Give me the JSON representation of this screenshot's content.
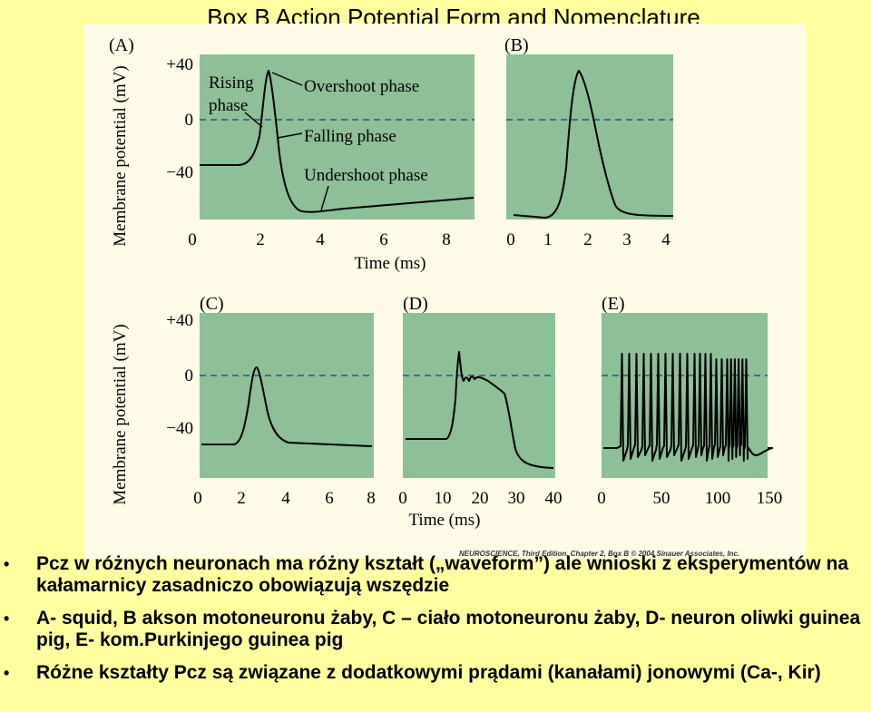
{
  "slide": {
    "title": "Box B  Action Potential Form and Nomenclature",
    "credit": "NEUROSCIENCE, Third Edition, Chapter 2, Box B  © 2004 Sinauer Associates, Inc.",
    "bullets": [
      "Pcz w różnych neuronach ma różny kształt („waveform”) ale wnioski z eksperymentów na kałamarnicy zasadniczo obowiązują wszędzie",
      "A- squid, B akson motoneuronu żaby, C – ciało motoneuronu żaby, D- neuron oliwki guinea pig, E- kom.Purkinjego guinea pig",
      "Różne kształty Pcz są związane z dodatkowymi prądami (kanałami) jonowymi (Ca-, Kir)"
    ]
  },
  "figure": {
    "colors": {
      "panel_bg": "#8dc097",
      "trace": "#000000",
      "zero_line": "#1e5a78",
      "figure_bg": "#fffbe6"
    },
    "ylabel": "Membrane potential (mV)",
    "xlabel": "Time (ms)",
    "y_ticks": [
      "+40",
      "0",
      "−40"
    ],
    "annotations": [
      "Rising phase",
      "Overshoot phase",
      "Falling phase",
      "Undershoot phase"
    ],
    "panels": [
      {
        "id": "A",
        "label": "(A)",
        "x_ticks": [
          "0",
          "2",
          "4",
          "6",
          "8"
        ]
      },
      {
        "id": "B",
        "label": "(B)",
        "x_ticks": [
          "0",
          "1",
          "2",
          "3",
          "4"
        ]
      },
      {
        "id": "C",
        "label": "(C)",
        "x_ticks": [
          "0",
          "2",
          "4",
          "6",
          "8"
        ]
      },
      {
        "id": "D",
        "label": "(D)",
        "x_ticks": [
          "0",
          "10",
          "20",
          "30",
          "40"
        ]
      },
      {
        "id": "E",
        "label": "(E)",
        "x_ticks": [
          "0",
          "50",
          "100",
          "150"
        ]
      }
    ]
  }
}
